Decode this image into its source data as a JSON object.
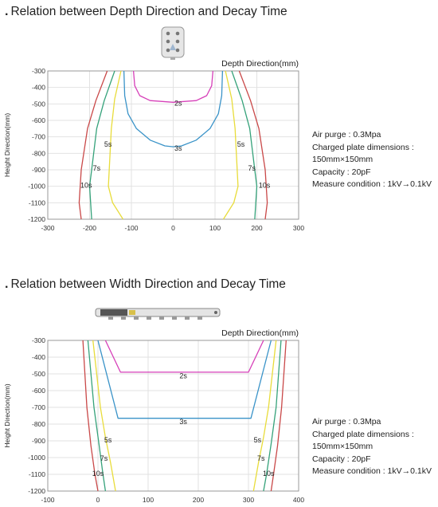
{
  "sections": [
    {
      "title": "Relation between Depth Direction and Decay Time",
      "device_icon": "sensor-head-icon",
      "specs": [
        "Air purge : 0.3Mpa",
        "Charged plate dimensions :",
        "150mm×150mm",
        "Capacity : 20pF",
        "Measure condition : 1kV→0.1kV"
      ]
    },
    {
      "title": "Relation between Width Direction and Decay Time",
      "device_icon": "bar-ionizer-icon",
      "specs": [
        "Air purge : 0.3Mpa",
        "Charged plate dimensions :",
        "150mm×150mm",
        "Capacity : 20pF",
        "Measure condition : 1kV→0.1kV"
      ]
    }
  ],
  "colors": {
    "2s": "#d63fb8",
    "3s": "#3a93c8",
    "5s": "#e8dc3a",
    "7s": "#35a27a",
    "10s": "#c94848",
    "grid": "#e2e2e2",
    "frame": "#999999"
  },
  "chart_data": [
    {
      "type": "line",
      "title": "Relation between Depth Direction and Decay Time",
      "xlabel": "Depth Direction(mm)",
      "ylabel": "Height Direction(mm)",
      "xlim": [
        -300,
        300
      ],
      "ylim": [
        -1200,
        -300
      ],
      "xticks": [
        -300,
        -200,
        -100,
        0,
        100,
        200,
        300
      ],
      "yticks": [
        -300,
        -400,
        -500,
        -600,
        -700,
        -800,
        -900,
        -1000,
        -1100,
        -1200
      ],
      "grid": true,
      "series": [
        {
          "name": "2s",
          "points": [
            [
              -95,
              -300
            ],
            [
              -92,
              -390
            ],
            [
              -80,
              -450
            ],
            [
              -55,
              -480
            ],
            [
              0,
              -490
            ],
            [
              55,
              -480
            ],
            [
              80,
              -450
            ],
            [
              92,
              -390
            ],
            [
              95,
              -300
            ]
          ]
        },
        {
          "name": "3s",
          "points": [
            [
              -118,
              -300
            ],
            [
              -116,
              -450
            ],
            [
              -108,
              -560
            ],
            [
              -88,
              -650
            ],
            [
              -55,
              -720
            ],
            [
              -20,
              -755
            ],
            [
              0,
              -760
            ],
            [
              20,
              -755
            ],
            [
              55,
              -720
            ],
            [
              88,
              -650
            ],
            [
              108,
              -560
            ],
            [
              116,
              -450
            ],
            [
              118,
              -300
            ]
          ]
        },
        {
          "name": "5s",
          "points": [
            [
              -125,
              -300
            ],
            [
              -140,
              -470
            ],
            [
              -148,
              -650
            ],
            [
              -155,
              -1000
            ],
            [
              -145,
              -1100
            ],
            [
              -120,
              -1200
            ]
          ]
        },
        {
          "name": "5s",
          "points": [
            [
              125,
              -300
            ],
            [
              140,
              -470
            ],
            [
              148,
              -650
            ],
            [
              155,
              -1000
            ],
            [
              145,
              -1100
            ],
            [
              120,
              -1200
            ]
          ]
        },
        {
          "name": "7s",
          "points": [
            [
              -140,
              -300
            ],
            [
              -165,
              -480
            ],
            [
              -183,
              -650
            ],
            [
              -195,
              -900
            ],
            [
              -200,
              -1000
            ],
            [
              -195,
              -1200
            ]
          ]
        },
        {
          "name": "7s",
          "points": [
            [
              140,
              -300
            ],
            [
              165,
              -480
            ],
            [
              183,
              -650
            ],
            [
              195,
              -900
            ],
            [
              200,
              -1000
            ],
            [
              195,
              -1200
            ]
          ]
        },
        {
          "name": "10s",
          "points": [
            [
              -158,
              -300
            ],
            [
              -185,
              -480
            ],
            [
              -205,
              -650
            ],
            [
              -220,
              -900
            ],
            [
              -225,
              -1100
            ],
            [
              -220,
              -1200
            ]
          ]
        },
        {
          "name": "10s",
          "points": [
            [
              158,
              -300
            ],
            [
              185,
              -480
            ],
            [
              205,
              -650
            ],
            [
              220,
              -900
            ],
            [
              225,
              -1100
            ],
            [
              220,
              -1200
            ]
          ]
        }
      ],
      "labels": [
        {
          "text": "2s",
          "x": 12,
          "y": -510
        },
        {
          "text": "3s",
          "x": 12,
          "y": -785
        },
        {
          "text": "5s",
          "x": -156,
          "y": -760
        },
        {
          "text": "5s",
          "x": 162,
          "y": -760
        },
        {
          "text": "7s",
          "x": -183,
          "y": -905
        },
        {
          "text": "7s",
          "x": 188,
          "y": -905
        },
        {
          "text": "10s",
          "x": -208,
          "y": -1010
        },
        {
          "text": "10s",
          "x": 218,
          "y": -1010
        }
      ]
    },
    {
      "type": "line",
      "title": "Relation between Width Direction and Decay Time",
      "xlabel": "Depth Direction(mm)",
      "ylabel": "Height Direction(mm)",
      "xlim": [
        -100,
        400
      ],
      "ylim": [
        -1200,
        -300
      ],
      "xticks": [
        -100,
        0,
        100,
        200,
        300,
        400
      ],
      "yticks": [
        -300,
        -400,
        -500,
        -600,
        -700,
        -800,
        -900,
        -1000,
        -1100,
        -1200
      ],
      "grid": true,
      "series": [
        {
          "name": "2s",
          "points": [
            [
              15,
              -300
            ],
            [
              45,
              -490
            ],
            [
              300,
              -490
            ],
            [
              330,
              -300
            ]
          ]
        },
        {
          "name": "3s",
          "points": [
            [
              0,
              -300
            ],
            [
              40,
              -765
            ],
            [
              305,
              -765
            ],
            [
              345,
              -300
            ]
          ]
        },
        {
          "name": "5s",
          "points": [
            [
              -10,
              -300
            ],
            [
              5,
              -700
            ],
            [
              15,
              -880
            ],
            [
              25,
              -1030
            ],
            [
              35,
              -1200
            ]
          ]
        },
        {
          "name": "5s",
          "points": [
            [
              355,
              -300
            ],
            [
              340,
              -700
            ],
            [
              330,
              -880
            ],
            [
              320,
              -1030
            ],
            [
              310,
              -1200
            ]
          ]
        },
        {
          "name": "7s",
          "points": [
            [
              -20,
              -300
            ],
            [
              -8,
              -700
            ],
            [
              2,
              -920
            ],
            [
              10,
              -1100
            ],
            [
              15,
              -1200
            ]
          ]
        },
        {
          "name": "7s",
          "points": [
            [
              365,
              -300
            ],
            [
              355,
              -700
            ],
            [
              345,
              -920
            ],
            [
              336,
              -1100
            ],
            [
              330,
              -1200
            ]
          ]
        },
        {
          "name": "10s",
          "points": [
            [
              -30,
              -300
            ],
            [
              -22,
              -700
            ],
            [
              -14,
              -930
            ],
            [
              -6,
              -1100
            ],
            [
              0,
              -1200
            ]
          ]
        },
        {
          "name": "10s",
          "points": [
            [
              375,
              -300
            ],
            [
              366,
              -700
            ],
            [
              358,
              -930
            ],
            [
              350,
              -1100
            ],
            [
              345,
              -1200
            ]
          ]
        }
      ],
      "labels": [
        {
          "text": "2s",
          "x": 170,
          "y": -525
        },
        {
          "text": "3s",
          "x": 170,
          "y": -800
        },
        {
          "text": "5s",
          "x": 20,
          "y": -910
        },
        {
          "text": "5s",
          "x": 318,
          "y": -910
        },
        {
          "text": "7s",
          "x": 12,
          "y": -1020
        },
        {
          "text": "7s",
          "x": 325,
          "y": -1020
        },
        {
          "text": "10s",
          "x": 0,
          "y": -1110
        },
        {
          "text": "10s",
          "x": 340,
          "y": -1110
        }
      ]
    }
  ]
}
